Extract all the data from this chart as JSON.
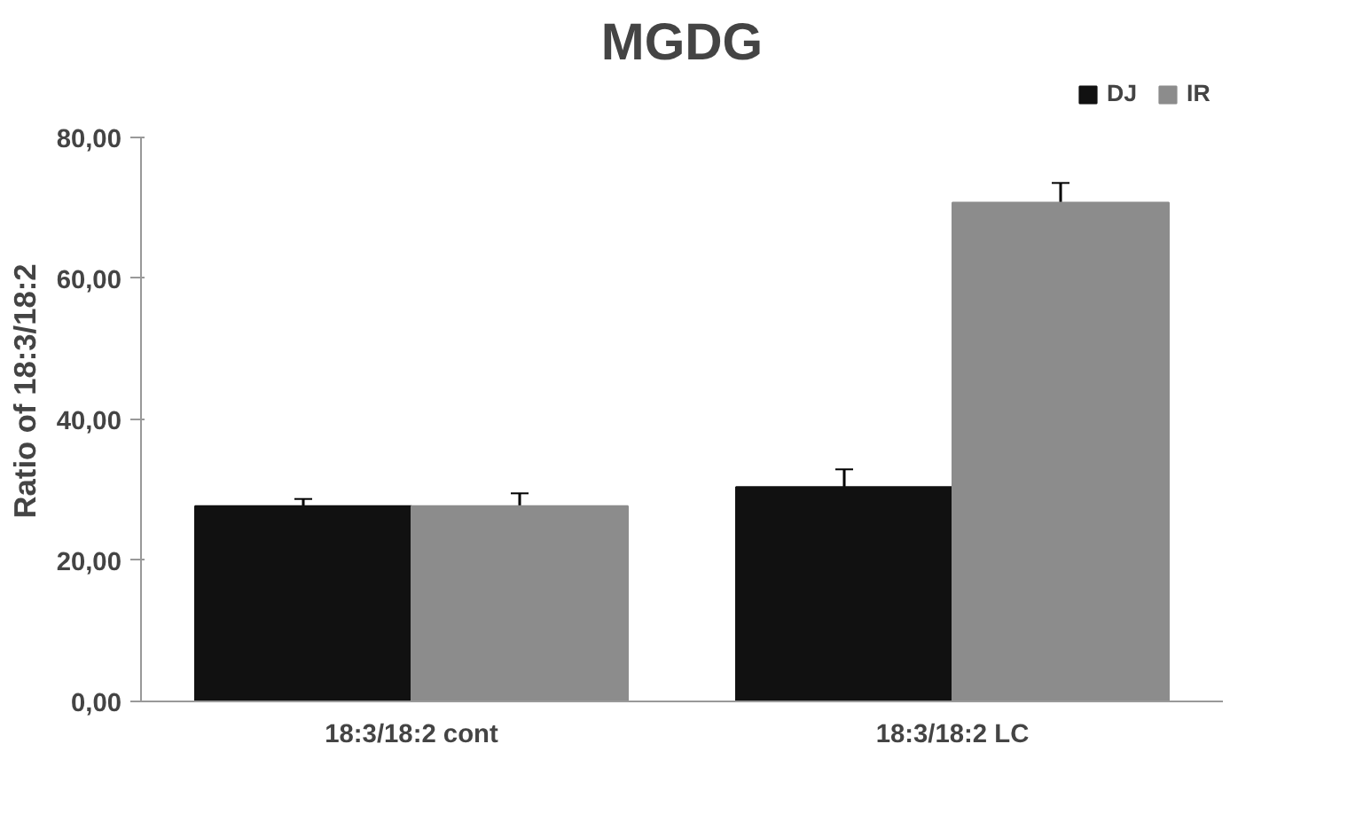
{
  "chart_data": {
    "type": "bar",
    "title": "MGDG",
    "ylabel": "Ratio of 18:3/18:2",
    "categories": [
      "18:3/18:2 cont",
      "18:3/18:2 LC"
    ],
    "series": [
      {
        "name": "DJ",
        "color": "#111111",
        "values": [
          27.7,
          30.4
        ],
        "errors": [
          1.0,
          2.5
        ]
      },
      {
        "name": "IR",
        "color": "#8c8c8c",
        "values": [
          27.7,
          70.7
        ],
        "errors": [
          1.8,
          2.8
        ]
      }
    ],
    "ylim": [
      0,
      80
    ],
    "yticks": [
      {
        "value": 0,
        "label": "0,00"
      },
      {
        "value": 20,
        "label": "20,00"
      },
      {
        "value": 40,
        "label": "40,00"
      },
      {
        "value": 60,
        "label": "60,00"
      },
      {
        "value": 80,
        "label": "80,00"
      }
    ],
    "grid": false,
    "legend": "top right"
  }
}
